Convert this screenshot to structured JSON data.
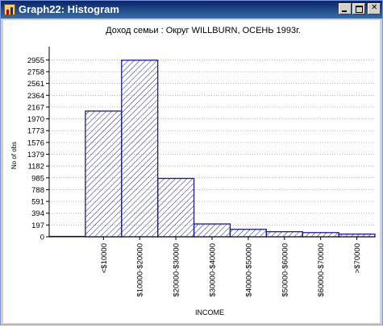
{
  "window": {
    "title": "Graph22: Histogram"
  },
  "chart_data": {
    "type": "bar",
    "title": "Доход семьи : Округ WILLBURN, ОСЕНЬ 1993г.",
    "xlabel": "INCOME",
    "ylabel": "No of obs",
    "categories": [
      "",
      "<$10000",
      "$10000-$20000",
      "$20000-$30000",
      "$30000-$40000",
      "$40000-$50000",
      "$50000-$60000",
      "$60000-$70000",
      ">$70000"
    ],
    "values": [
      0,
      2100,
      2950,
      975,
      215,
      125,
      85,
      70,
      45
    ],
    "ylim": [
      0,
      3175
    ],
    "yticks": [
      "0",
      "197",
      "394",
      "591",
      "788",
      "985",
      "1182",
      "1379",
      "1576",
      "1773",
      "1970",
      "2167",
      "2364",
      "2561",
      "2758",
      "2955"
    ],
    "ytick_values": [
      0,
      197,
      394,
      591,
      788,
      985,
      1182,
      1379,
      1576,
      1773,
      1970,
      2167,
      2364,
      2561,
      2758,
      2955
    ],
    "grid": true,
    "bar_color": "#1a1a9c",
    "fill_pattern": "diagonal-hatch"
  }
}
